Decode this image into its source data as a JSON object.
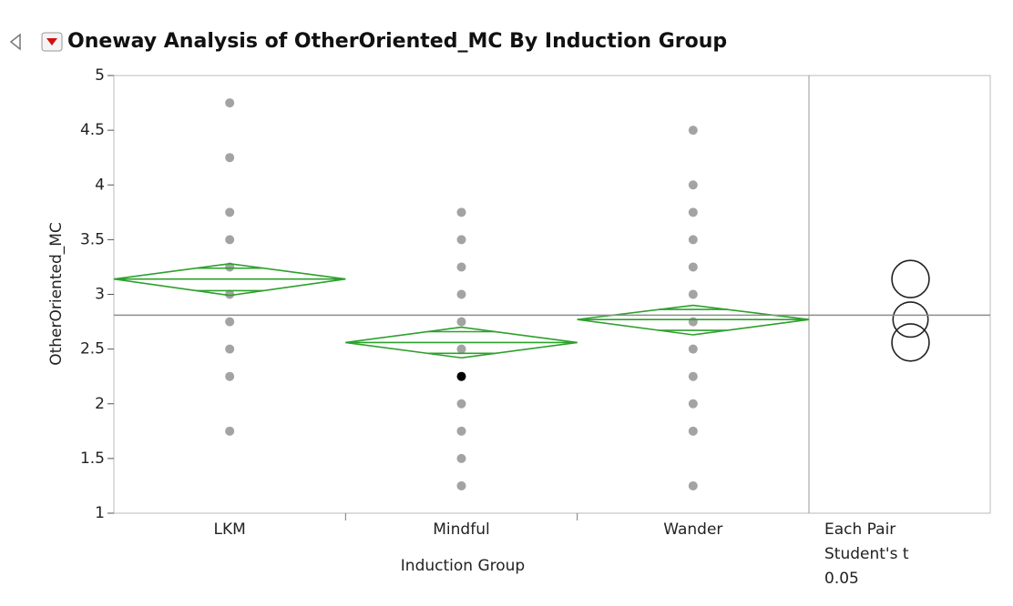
{
  "chart_data": {
    "type": "oneway",
    "title": "Oneway Analysis of OtherOriented_MC By Induction Group",
    "x_label": "Induction Group",
    "y_label": "OtherOriented_MC",
    "categories": [
      "LKM",
      "Mindful",
      "Wander"
    ],
    "points": [
      [
        4.75,
        4.25,
        3.75,
        3.5,
        3.25,
        3,
        2.75,
        2.5,
        2.25,
        1.75
      ],
      [
        3.75,
        3.5,
        3.25,
        3,
        2.75,
        2.5,
        2.25,
        2,
        1.75,
        1.5,
        1.25
      ],
      [
        4.5,
        4,
        3.75,
        3.5,
        3.25,
        3,
        2.75,
        2.5,
        2.25,
        2,
        1.75,
        1.25
      ]
    ],
    "selected": [
      [
        1,
        6
      ]
    ],
    "means": [
      3.14,
      2.56,
      2.77
    ],
    "ci_lower": [
      2.99,
      2.42,
      2.63
    ],
    "ci_upper": [
      3.28,
      2.7,
      2.9
    ],
    "grand_mean": 2.81,
    "circle_radii": [
      0.17,
      0.17,
      0.16
    ],
    "comparison_labels": [
      "Each Pair",
      "Student's t"
    ],
    "alpha": 0.05,
    "ylim": [
      1,
      5
    ],
    "yticks": [
      1,
      1.5,
      2,
      2.5,
      3,
      3.5,
      4,
      4.5,
      5
    ],
    "point_color": "#a3a3a3",
    "selected_color": "#000000",
    "diamond_color": "#2ca02c",
    "grand_mean_color": "#8c8c8c"
  }
}
